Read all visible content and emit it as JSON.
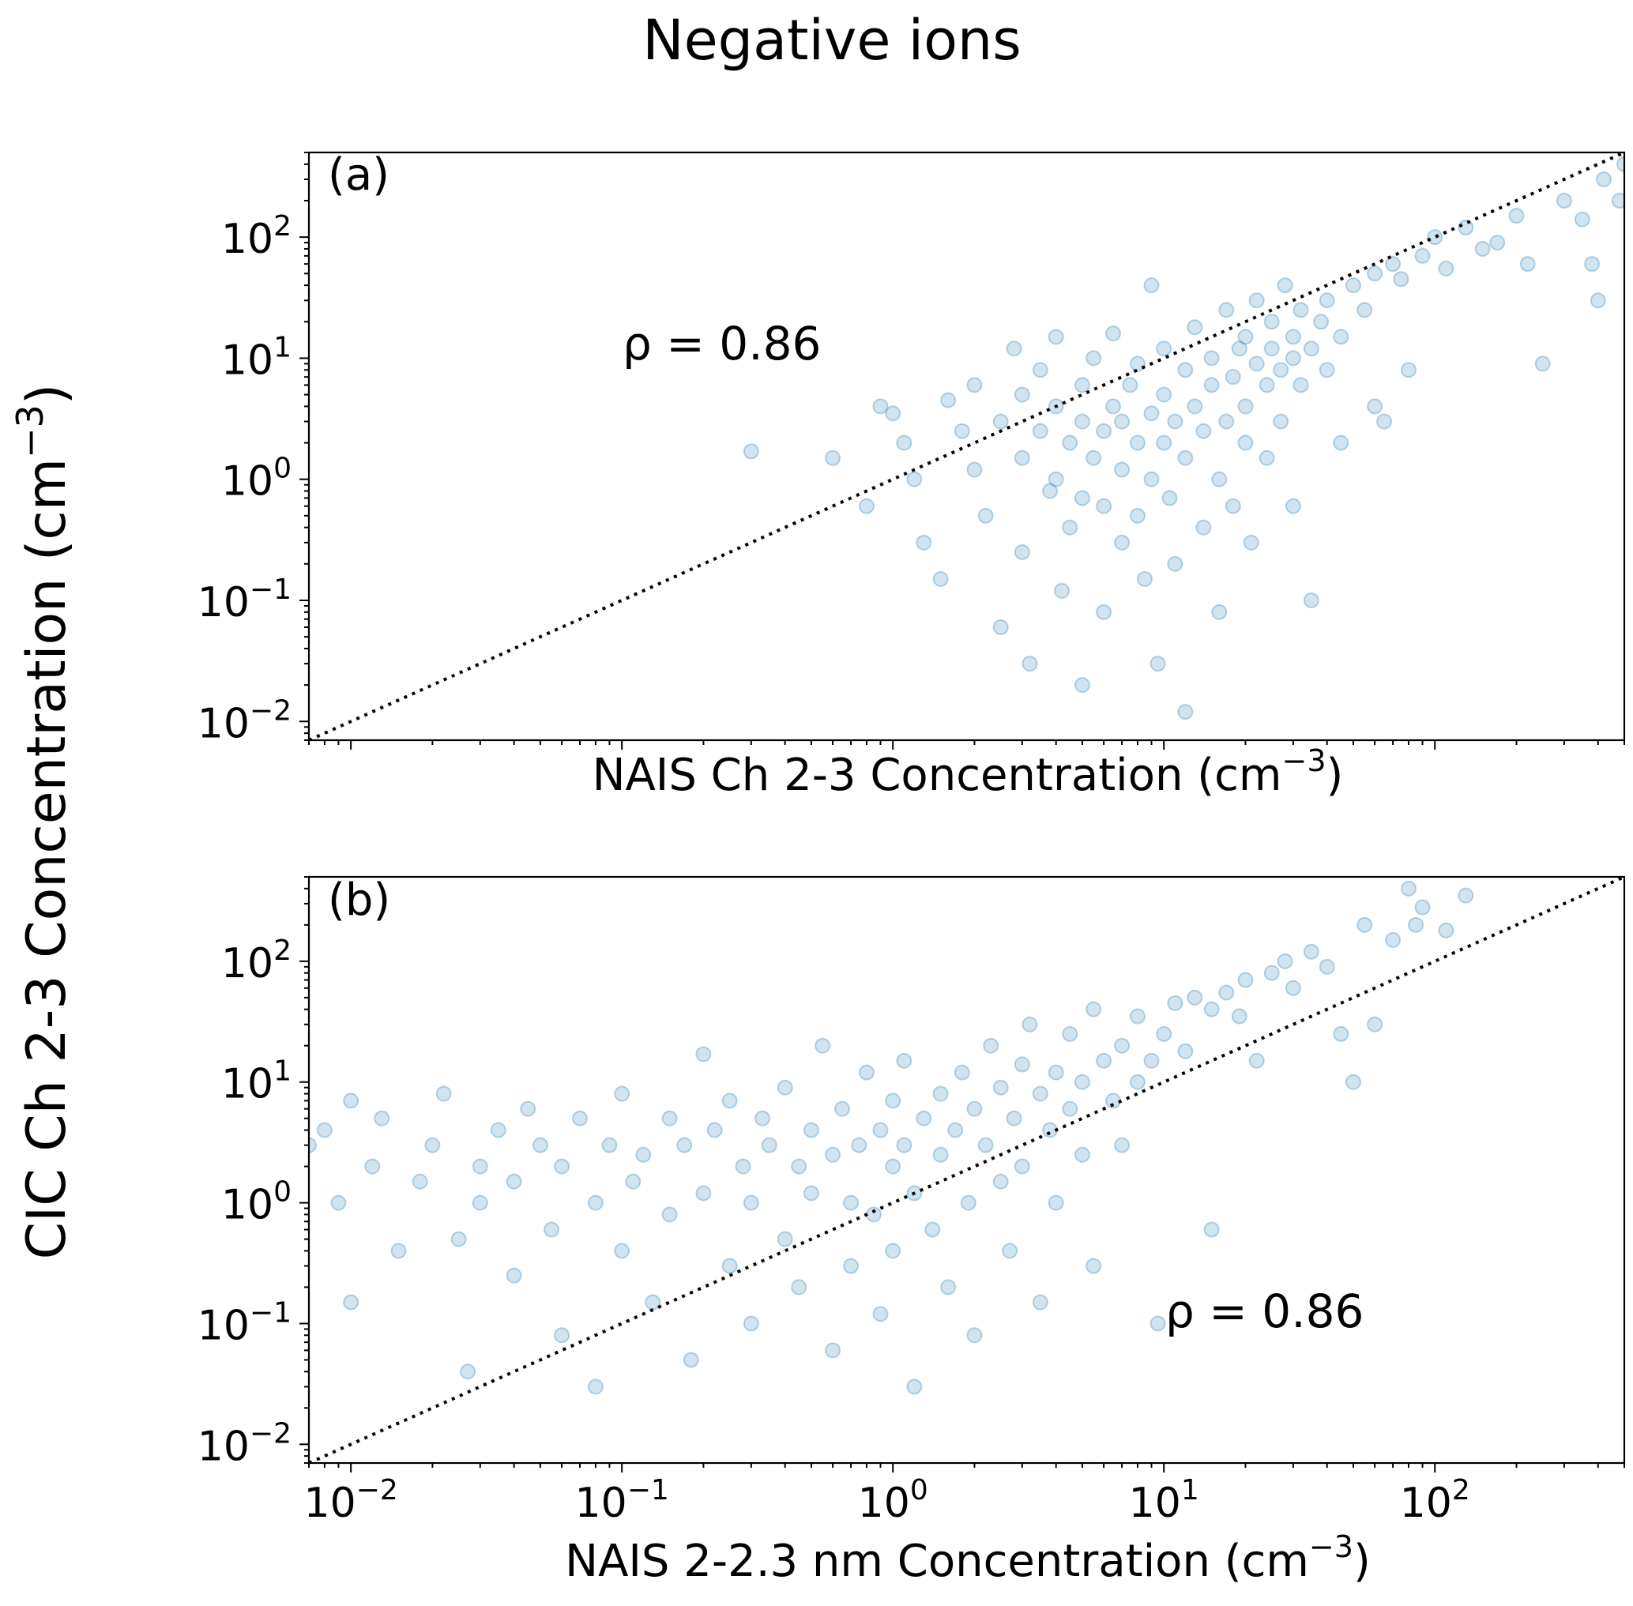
{
  "title": "Negative ions",
  "ylabel": "CIC Ch 2-3 Concentration (cm",
  "ylabel_exp": "−3",
  "ylabel_close": ")",
  "colors": {
    "points": "#1f77b4",
    "line": "#000000"
  },
  "chart_data": [
    {
      "type": "scatter",
      "panel_label": "(a)",
      "xlabel": "NAIS Ch 2-3 Concentration (cm",
      "xlabel_exp": "−3",
      "xlabel_close": ")",
      "annotation": "ρ = 0.86",
      "x_scale": "log",
      "y_scale": "log",
      "xlim": [
        0.007,
        500
      ],
      "ylim": [
        0.007,
        500
      ],
      "x_tick_labels_shown": false,
      "reference_line": "y = x (dotted)",
      "grid": false,
      "points": [
        [
          0.3,
          1.7
        ],
        [
          0.6,
          1.5
        ],
        [
          0.8,
          0.6
        ],
        [
          0.9,
          4
        ],
        [
          1,
          3.5
        ],
        [
          1.1,
          2
        ],
        [
          1.2,
          1
        ],
        [
          1.3,
          0.3
        ],
        [
          1.5,
          0.15
        ],
        [
          1.6,
          4.5
        ],
        [
          1.8,
          2.5
        ],
        [
          2,
          1.2
        ],
        [
          2,
          6
        ],
        [
          2.2,
          0.5
        ],
        [
          2.5,
          3
        ],
        [
          2.5,
          0.06
        ],
        [
          2.8,
          12
        ],
        [
          3,
          1.5
        ],
        [
          3,
          5
        ],
        [
          3,
          0.25
        ],
        [
          3.2,
          0.03
        ],
        [
          3.5,
          2.5
        ],
        [
          3.5,
          8
        ],
        [
          3.8,
          0.8
        ],
        [
          4,
          1
        ],
        [
          4,
          4
        ],
        [
          4,
          15
        ],
        [
          4.2,
          0.12
        ],
        [
          4.5,
          2
        ],
        [
          4.5,
          0.4
        ],
        [
          5,
          3
        ],
        [
          5,
          6
        ],
        [
          5,
          0.7
        ],
        [
          5,
          0.02
        ],
        [
          5.5,
          1.5
        ],
        [
          5.5,
          10
        ],
        [
          6,
          2.5
        ],
        [
          6,
          0.6
        ],
        [
          6,
          0.08
        ],
        [
          6.5,
          4
        ],
        [
          6.5,
          16
        ],
        [
          7,
          1.2
        ],
        [
          7,
          3
        ],
        [
          7,
          0.3
        ],
        [
          7.5,
          6
        ],
        [
          8,
          2
        ],
        [
          8,
          0.5
        ],
        [
          8,
          9
        ],
        [
          8.5,
          0.15
        ],
        [
          9,
          3.5
        ],
        [
          9,
          1
        ],
        [
          9,
          40
        ],
        [
          9.5,
          0.03
        ],
        [
          10,
          5
        ],
        [
          10,
          2
        ],
        [
          10,
          12
        ],
        [
          10.5,
          0.7
        ],
        [
          11,
          3
        ],
        [
          11,
          0.2
        ],
        [
          12,
          8
        ],
        [
          12,
          1.5
        ],
        [
          12,
          0.012
        ],
        [
          13,
          4
        ],
        [
          13,
          18
        ],
        [
          14,
          2.5
        ],
        [
          14,
          0.4
        ],
        [
          15,
          6
        ],
        [
          15,
          10
        ],
        [
          16,
          1
        ],
        [
          16,
          0.08
        ],
        [
          17,
          3
        ],
        [
          17,
          25
        ],
        [
          18,
          7
        ],
        [
          18,
          0.6
        ],
        [
          19,
          12
        ],
        [
          20,
          4
        ],
        [
          20,
          2
        ],
        [
          20,
          15
        ],
        [
          21,
          0.3
        ],
        [
          22,
          9
        ],
        [
          22,
          30
        ],
        [
          24,
          6
        ],
        [
          24,
          1.5
        ],
        [
          25,
          12
        ],
        [
          25,
          20
        ],
        [
          27,
          8
        ],
        [
          27,
          3
        ],
        [
          28,
          40
        ],
        [
          30,
          10
        ],
        [
          30,
          15
        ],
        [
          30,
          0.6
        ],
        [
          32,
          6
        ],
        [
          32,
          25
        ],
        [
          35,
          12
        ],
        [
          35,
          0.1
        ],
        [
          38,
          20
        ],
        [
          40,
          8
        ],
        [
          40,
          30
        ],
        [
          45,
          15
        ],
        [
          45,
          2
        ],
        [
          50,
          40
        ],
        [
          55,
          25
        ],
        [
          60,
          50
        ],
        [
          60,
          4
        ],
        [
          65,
          3
        ],
        [
          70,
          60
        ],
        [
          75,
          45
        ],
        [
          80,
          8
        ],
        [
          90,
          70
        ],
        [
          100,
          100
        ],
        [
          110,
          55
        ],
        [
          130,
          120
        ],
        [
          150,
          80
        ],
        [
          170,
          90
        ],
        [
          200,
          150
        ],
        [
          220,
          60
        ],
        [
          250,
          9
        ],
        [
          300,
          200
        ],
        [
          350,
          140
        ],
        [
          380,
          60
        ],
        [
          400,
          30
        ],
        [
          420,
          300
        ],
        [
          480,
          200
        ],
        [
          500,
          400
        ]
      ]
    },
    {
      "type": "scatter",
      "panel_label": "(b)",
      "xlabel": "NAIS 2-2.3 nm Concentration (cm",
      "xlabel_exp": "−3",
      "xlabel_close": ")",
      "annotation": "ρ = 0.86",
      "x_scale": "log",
      "y_scale": "log",
      "xlim": [
        0.007,
        500
      ],
      "ylim": [
        0.007,
        500
      ],
      "x_tick_labels_shown": true,
      "reference_line": "y = x (dotted)",
      "grid": false,
      "points": [
        [
          0.007,
          3
        ],
        [
          0.008,
          4
        ],
        [
          0.009,
          1
        ],
        [
          0.01,
          7
        ],
        [
          0.01,
          0.15
        ],
        [
          0.012,
          2
        ],
        [
          0.013,
          5
        ],
        [
          0.015,
          0.4
        ],
        [
          0.018,
          1.5
        ],
        [
          0.02,
          3
        ],
        [
          0.022,
          8
        ],
        [
          0.025,
          0.5
        ],
        [
          0.027,
          0.04
        ],
        [
          0.03,
          2
        ],
        [
          0.03,
          1
        ],
        [
          0.035,
          4
        ],
        [
          0.04,
          0.25
        ],
        [
          0.04,
          1.5
        ],
        [
          0.045,
          6
        ],
        [
          0.05,
          3
        ],
        [
          0.055,
          0.6
        ],
        [
          0.06,
          0.08
        ],
        [
          0.06,
          2
        ],
        [
          0.07,
          5
        ],
        [
          0.08,
          1
        ],
        [
          0.08,
          0.03
        ],
        [
          0.09,
          3
        ],
        [
          0.1,
          0.4
        ],
        [
          0.1,
          8
        ],
        [
          0.11,
          1.5
        ],
        [
          0.12,
          2.5
        ],
        [
          0.13,
          0.15
        ],
        [
          0.15,
          5
        ],
        [
          0.15,
          0.8
        ],
        [
          0.17,
          3
        ],
        [
          0.18,
          0.05
        ],
        [
          0.2,
          1.2
        ],
        [
          0.2,
          17
        ],
        [
          0.22,
          4
        ],
        [
          0.25,
          0.3
        ],
        [
          0.25,
          7
        ],
        [
          0.28,
          2
        ],
        [
          0.3,
          1
        ],
        [
          0.3,
          0.1
        ],
        [
          0.33,
          5
        ],
        [
          0.35,
          3
        ],
        [
          0.4,
          0.5
        ],
        [
          0.4,
          9
        ],
        [
          0.45,
          2
        ],
        [
          0.45,
          0.2
        ],
        [
          0.5,
          4
        ],
        [
          0.5,
          1.2
        ],
        [
          0.55,
          20
        ],
        [
          0.6,
          0.06
        ],
        [
          0.6,
          2.5
        ],
        [
          0.65,
          6
        ],
        [
          0.7,
          1
        ],
        [
          0.7,
          0.3
        ],
        [
          0.75,
          3
        ],
        [
          0.8,
          12
        ],
        [
          0.85,
          0.8
        ],
        [
          0.9,
          4
        ],
        [
          0.9,
          0.12
        ],
        [
          1,
          2
        ],
        [
          1,
          7
        ],
        [
          1,
          0.4
        ],
        [
          1.1,
          3
        ],
        [
          1.1,
          15
        ],
        [
          1.2,
          1.2
        ],
        [
          1.2,
          0.03
        ],
        [
          1.3,
          5
        ],
        [
          1.4,
          0.6
        ],
        [
          1.5,
          8
        ],
        [
          1.5,
          2.5
        ],
        [
          1.6,
          0.2
        ],
        [
          1.7,
          4
        ],
        [
          1.8,
          12
        ],
        [
          1.9,
          1
        ],
        [
          2,
          6
        ],
        [
          2,
          0.08
        ],
        [
          2.2,
          3
        ],
        [
          2.3,
          20
        ],
        [
          2.5,
          9
        ],
        [
          2.5,
          1.5
        ],
        [
          2.7,
          0.4
        ],
        [
          2.8,
          5
        ],
        [
          3,
          14
        ],
        [
          3,
          2
        ],
        [
          3.2,
          30
        ],
        [
          3.5,
          8
        ],
        [
          3.5,
          0.15
        ],
        [
          3.8,
          4
        ],
        [
          4,
          12
        ],
        [
          4,
          1
        ],
        [
          4.5,
          25
        ],
        [
          4.5,
          6
        ],
        [
          5,
          10
        ],
        [
          5,
          2.5
        ],
        [
          5.5,
          40
        ],
        [
          5.5,
          0.3
        ],
        [
          6,
          15
        ],
        [
          6.5,
          7
        ],
        [
          7,
          20
        ],
        [
          7,
          3
        ],
        [
          8,
          35
        ],
        [
          8,
          10
        ],
        [
          9,
          15
        ],
        [
          9.5,
          0.1
        ],
        [
          10,
          25
        ],
        [
          11,
          45
        ],
        [
          12,
          18
        ],
        [
          13,
          50
        ],
        [
          15,
          40
        ],
        [
          15,
          0.6
        ],
        [
          17,
          55
        ],
        [
          19,
          35
        ],
        [
          20,
          70
        ],
        [
          22,
          15
        ],
        [
          25,
          80
        ],
        [
          28,
          100
        ],
        [
          30,
          60
        ],
        [
          35,
          120
        ],
        [
          40,
          90
        ],
        [
          45,
          25
        ],
        [
          50,
          10
        ],
        [
          55,
          200
        ],
        [
          60,
          30
        ],
        [
          70,
          150
        ],
        [
          80,
          400
        ],
        [
          85,
          200
        ],
        [
          90,
          280
        ],
        [
          110,
          180
        ],
        [
          130,
          350
        ]
      ]
    }
  ],
  "y_ticks": [
    {
      "base": "10",
      "exp": "−2",
      "value": 0.01
    },
    {
      "base": "10",
      "exp": "−1",
      "value": 0.1
    },
    {
      "base": "10",
      "exp": "0",
      "value": 1
    },
    {
      "base": "10",
      "exp": "1",
      "value": 10
    },
    {
      "base": "10",
      "exp": "2",
      "value": 100
    }
  ],
  "x_ticks": [
    {
      "base": "10",
      "exp": "−2",
      "value": 0.01
    },
    {
      "base": "10",
      "exp": "−1",
      "value": 0.1
    },
    {
      "base": "10",
      "exp": "0",
      "value": 1
    },
    {
      "base": "10",
      "exp": "1",
      "value": 10
    },
    {
      "base": "10",
      "exp": "2",
      "value": 100
    }
  ]
}
